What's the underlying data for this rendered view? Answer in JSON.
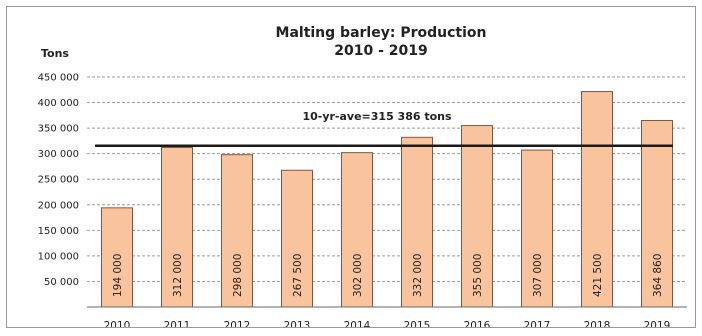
{
  "colors": {
    "bar_fill": "#f9c39e",
    "bar_stroke": "#7a5a44",
    "average_line": "#1a1a1a",
    "grid": "#9a9a9a"
  },
  "chart_data": {
    "type": "bar",
    "title": [
      "Malting barley: Production",
      "2010 - 2019"
    ],
    "ylabel": "Tons",
    "xlabel": "",
    "categories": [
      "2010",
      "2011",
      "2012",
      "2013",
      "2014",
      "2015",
      "2016",
      "2017",
      "2018",
      "2019"
    ],
    "values": [
      194000,
      312000,
      298000,
      267500,
      302000,
      332000,
      355000,
      307000,
      421500,
      364860
    ],
    "data_labels": [
      "194 000",
      "312 000",
      "298 000",
      "267 500",
      "302 000",
      "332 000",
      "355 000",
      "307 000",
      "421 500",
      "364 860"
    ],
    "ylim": [
      0,
      450000
    ],
    "yticks": [
      0,
      50000,
      100000,
      150000,
      200000,
      250000,
      300000,
      350000,
      400000,
      450000
    ],
    "ytick_labels": [
      "",
      "50 000",
      "100 000",
      "150 000",
      "200 000",
      "250 000",
      "300 000",
      "350 000",
      "400 000",
      "450 000"
    ],
    "grid": "horizontal-dashed",
    "reference_line": {
      "value": 315386,
      "label": "10-yr-ave=315 386 tons"
    }
  }
}
